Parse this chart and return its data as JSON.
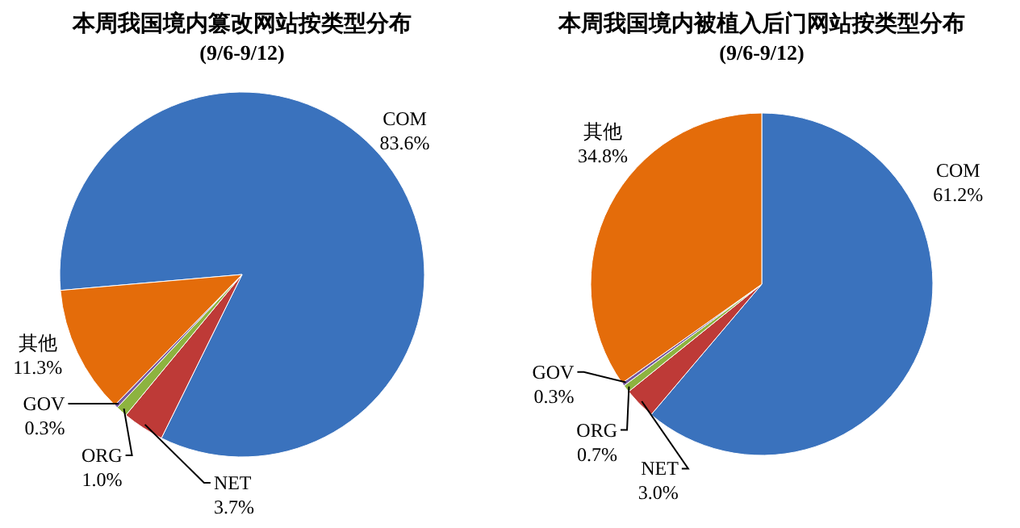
{
  "chart_data": [
    {
      "type": "pie",
      "title": "本周我国境内篡改网站按类型分布",
      "subtitle": "(9/6-9/12)",
      "categories": [
        "COM",
        "NET",
        "ORG",
        "GOV",
        "其他"
      ],
      "values": [
        83.6,
        3.7,
        1.0,
        0.3,
        11.3
      ],
      "value_labels": [
        "83.6%",
        "3.7%",
        "1.0%",
        "0.3%",
        "11.3%"
      ],
      "colors": [
        "#3a72bd",
        "#be3a37",
        "#8db33f",
        "#7458a0",
        "#e46c0a"
      ],
      "legend": false
    },
    {
      "type": "pie",
      "title": "本周我国境内被植入后门网站按类型分布",
      "subtitle": "(9/6-9/12)",
      "categories": [
        "COM",
        "NET",
        "ORG",
        "GOV",
        "其他"
      ],
      "values": [
        61.2,
        3.0,
        0.7,
        0.3,
        34.8
      ],
      "value_labels": [
        "61.2%",
        "3.0%",
        "0.7%",
        "0.3%",
        "34.8%"
      ],
      "colors": [
        "#3a72bd",
        "#be3a37",
        "#8db33f",
        "#7458a0",
        "#e46c0a"
      ],
      "legend": false
    }
  ]
}
